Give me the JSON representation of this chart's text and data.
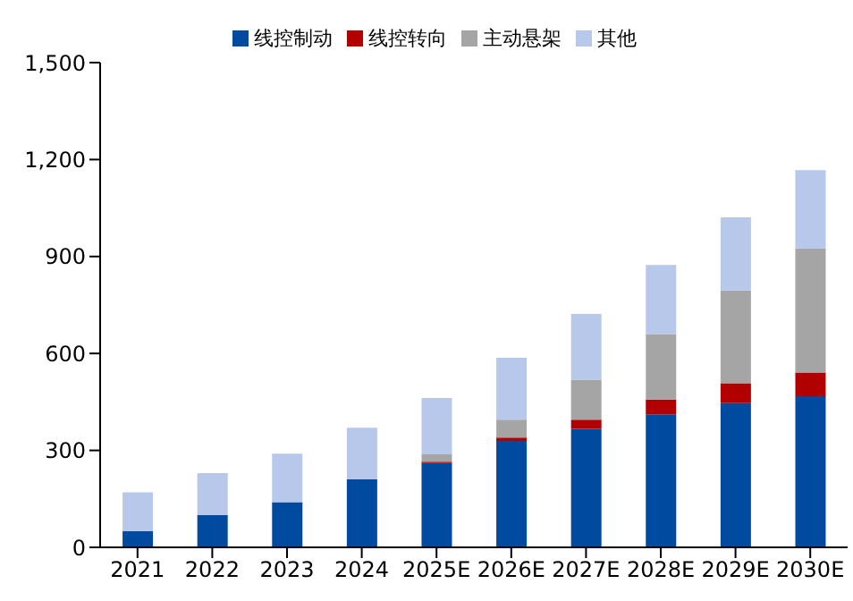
{
  "chart_data": {
    "type": "bar",
    "stacked": true,
    "categories": [
      "2021",
      "2022",
      "2023",
      "2024",
      "2025E",
      "2026E",
      "2027E",
      "2028E",
      "2029E",
      "2030E"
    ],
    "series": [
      {
        "name": "线控制动",
        "color": "#004a9f",
        "values": [
          50,
          100,
          140,
          210,
          261,
          329,
          367,
          412,
          446,
          468
        ]
      },
      {
        "name": "线控转向",
        "color": "#b20000",
        "values": [
          0,
          0,
          0,
          0,
          4,
          11,
          28,
          45,
          62,
          73
        ]
      },
      {
        "name": "主动悬架",
        "color": "#a5a5a5",
        "values": [
          0,
          0,
          0,
          0,
          23,
          55,
          124,
          203,
          287,
          384
        ]
      },
      {
        "name": "其他",
        "color": "#b7c8ea",
        "values": [
          120,
          130,
          150,
          160,
          174,
          192,
          203,
          214,
          226,
          242
        ]
      }
    ],
    "ylim": [
      0,
      1500
    ],
    "yticks": [
      0,
      300,
      600,
      900,
      {
        "value": 1200,
        "label": "1,200"
      },
      {
        "value": 1500,
        "label": "1,500"
      }
    ],
    "grid": false,
    "legend": "top"
  }
}
